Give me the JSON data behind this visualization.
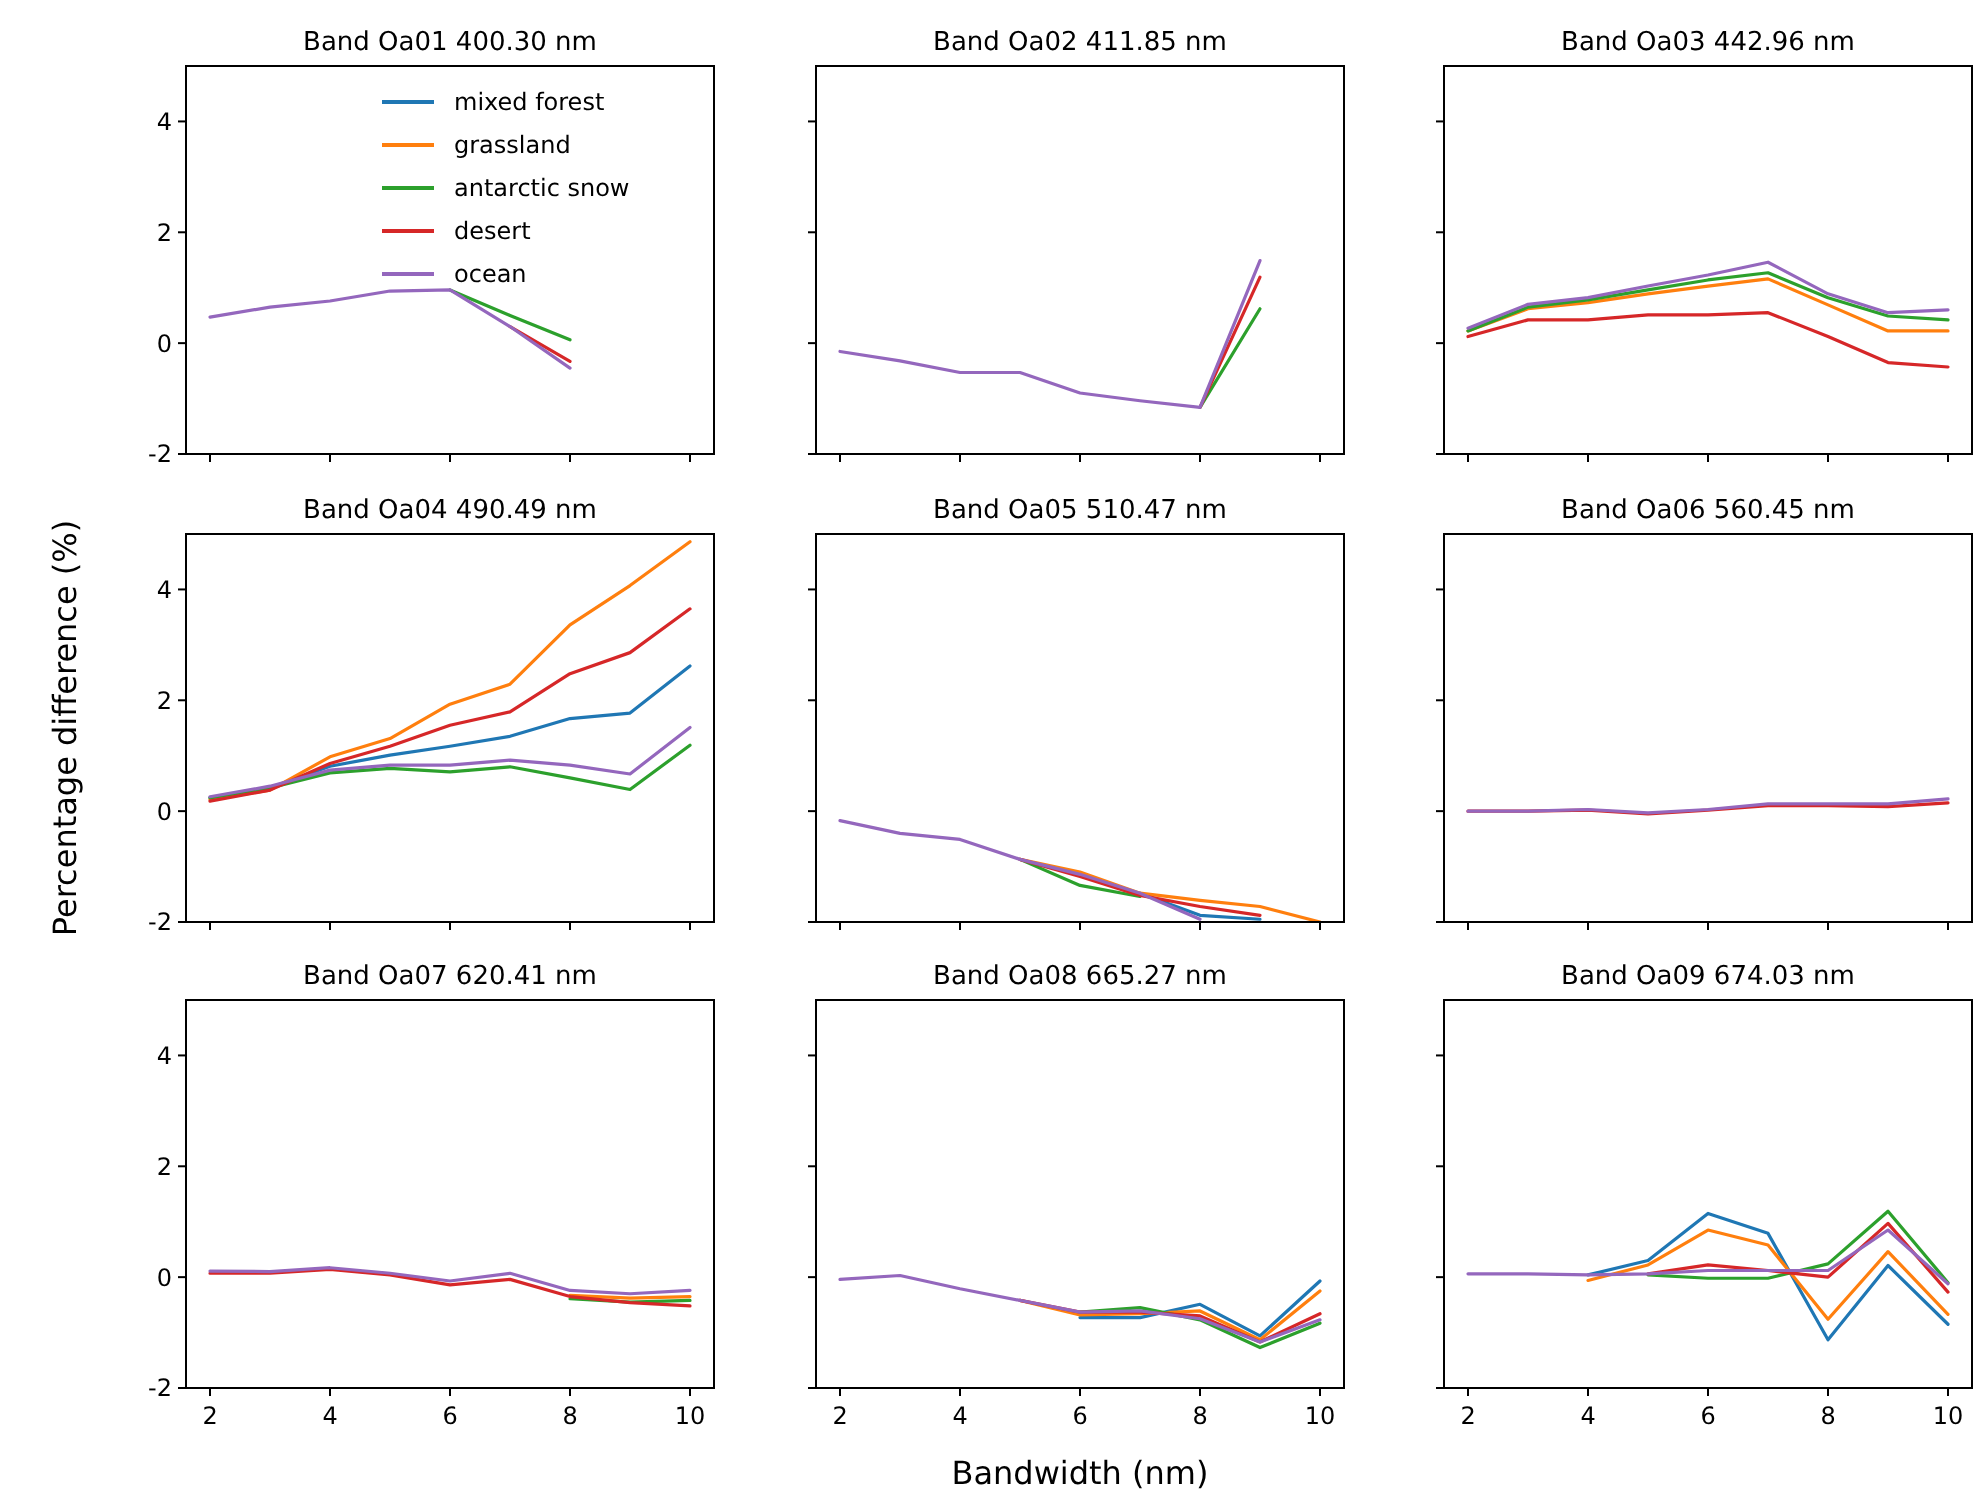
{
  "chart_data": [
    {
      "type": "line",
      "title": "Band Oa01 400.30 nm",
      "x": [
        2,
        3,
        4,
        5,
        6,
        7,
        8
      ],
      "xlim": [
        1.6,
        10.4
      ],
      "xticks": [
        2,
        4,
        6,
        8,
        10
      ],
      "ylim": [
        -2,
        5
      ],
      "yticks": [
        -2,
        0,
        2,
        4
      ],
      "tick_labels": "y",
      "legend": "top right",
      "series": [
        {
          "name": "mixed forest",
          "color": "#1f77b4",
          "values": [
            null,
            null,
            null,
            null,
            null,
            null,
            null
          ]
        },
        {
          "name": "grassland",
          "color": "#ff7f0e",
          "values": [
            null,
            null,
            null,
            null,
            null,
            null,
            null
          ]
        },
        {
          "name": "antarctic snow",
          "color": "#2ca02c",
          "values": [
            null,
            null,
            null,
            null,
            0.96,
            0.5,
            0.06
          ]
        },
        {
          "name": "desert",
          "color": "#d62728",
          "values": [
            null,
            null,
            null,
            null,
            null,
            0.3,
            -0.33
          ]
        },
        {
          "name": "ocean",
          "color": "#9467bd",
          "values": [
            0.47,
            0.65,
            0.76,
            0.94,
            0.96,
            0.3,
            -0.45
          ]
        }
      ]
    },
    {
      "type": "line",
      "title": "Band Oa02 411.85 nm",
      "x": [
        2,
        3,
        4,
        5,
        6,
        7,
        8,
        9
      ],
      "xlim": [
        1.6,
        10.4
      ],
      "xticks": [
        2,
        4,
        6,
        8,
        10
      ],
      "ylim": [
        -2,
        5
      ],
      "yticks": [
        -2,
        0,
        2,
        4
      ],
      "tick_labels": false,
      "series": [
        {
          "color": "#1f77b4",
          "values": [
            null,
            null,
            null,
            null,
            null,
            null,
            null,
            null
          ]
        },
        {
          "color": "#ff7f0e",
          "values": [
            null,
            null,
            null,
            null,
            null,
            null,
            null,
            null
          ]
        },
        {
          "color": "#2ca02c",
          "values": [
            null,
            null,
            null,
            null,
            null,
            null,
            -1.16,
            0.62
          ]
        },
        {
          "color": "#d62728",
          "values": [
            null,
            null,
            null,
            null,
            null,
            null,
            -1.16,
            1.19
          ]
        },
        {
          "color": "#9467bd",
          "values": [
            -0.15,
            -0.32,
            -0.53,
            -0.53,
            -0.9,
            -1.04,
            -1.16,
            1.49
          ]
        }
      ]
    },
    {
      "type": "line",
      "title": "Band Oa03 442.96 nm",
      "x": [
        2,
        3,
        4,
        5,
        6,
        7,
        8,
        9,
        10
      ],
      "xlim": [
        1.6,
        10.4
      ],
      "xticks": [
        2,
        4,
        6,
        8,
        10
      ],
      "ylim": [
        -2,
        5
      ],
      "yticks": [
        -2,
        0,
        2,
        4
      ],
      "tick_labels": false,
      "series": [
        {
          "color": "#1f77b4",
          "values": [
            null,
            null,
            null,
            null,
            null,
            null,
            null,
            null,
            null
          ]
        },
        {
          "color": "#ff7f0e",
          "values": [
            0.22,
            0.62,
            0.73,
            0.89,
            1.03,
            1.16,
            0.69,
            0.22,
            0.22
          ]
        },
        {
          "color": "#2ca02c",
          "values": [
            0.22,
            0.65,
            0.78,
            0.96,
            1.14,
            1.27,
            0.82,
            0.49,
            0.42
          ]
        },
        {
          "color": "#d62728",
          "values": [
            0.12,
            0.42,
            0.42,
            0.51,
            0.51,
            0.55,
            0.12,
            -0.35,
            -0.43
          ]
        },
        {
          "color": "#9467bd",
          "values": [
            0.27,
            0.7,
            0.82,
            1.03,
            1.23,
            1.46,
            0.89,
            0.55,
            0.6
          ]
        }
      ]
    },
    {
      "type": "line",
      "title": "Band Oa04 490.49 nm",
      "ylabel": "Percentage difference (%)",
      "x": [
        2,
        3,
        4,
        5,
        6,
        7,
        8,
        9,
        10
      ],
      "xlim": [
        1.6,
        10.4
      ],
      "xticks": [
        2,
        4,
        6,
        8,
        10
      ],
      "ylim": [
        -2,
        5
      ],
      "yticks": [
        -2,
        0,
        2,
        4
      ],
      "tick_labels": "y",
      "series": [
        {
          "color": "#1f77b4",
          "values": [
            0.24,
            0.42,
            0.81,
            1.01,
            1.17,
            1.35,
            1.67,
            1.77,
            2.62
          ]
        },
        {
          "color": "#ff7f0e",
          "values": [
            0.21,
            0.38,
            0.98,
            1.31,
            1.93,
            2.29,
            3.36,
            4.07,
            4.86
          ]
        },
        {
          "color": "#2ca02c",
          "values": [
            0.24,
            0.42,
            0.69,
            0.77,
            0.71,
            0.8,
            0.6,
            0.39,
            1.19
          ]
        },
        {
          "color": "#d62728",
          "values": [
            0.18,
            0.38,
            0.86,
            1.17,
            1.55,
            1.79,
            2.48,
            2.86,
            3.65
          ]
        },
        {
          "color": "#9467bd",
          "values": [
            0.26,
            0.45,
            0.74,
            0.83,
            0.83,
            0.92,
            0.83,
            0.67,
            1.51
          ]
        }
      ]
    },
    {
      "type": "line",
      "title": "Band Oa05 510.47 nm",
      "x": [
        2,
        3,
        4,
        5,
        6,
        7,
        8,
        9,
        10
      ],
      "xlim": [
        1.6,
        10.4
      ],
      "xticks": [
        2,
        4,
        6,
        8,
        10
      ],
      "ylim": [
        -2,
        5
      ],
      "yticks": [
        -2,
        0,
        2,
        4
      ],
      "tick_labels": false,
      "series": [
        {
          "color": "#1f77b4",
          "values": [
            null,
            null,
            null,
            null,
            null,
            -1.48,
            -1.88,
            -1.95,
            null
          ]
        },
        {
          "color": "#ff7f0e",
          "values": [
            null,
            null,
            null,
            -0.87,
            -1.1,
            -1.48,
            -1.61,
            -1.72,
            -2
          ]
        },
        {
          "color": "#2ca02c",
          "values": [
            null,
            null,
            null,
            -0.87,
            -1.34,
            -1.54,
            null,
            null,
            null
          ]
        },
        {
          "color": "#d62728",
          "values": [
            null,
            null,
            null,
            -0.87,
            -1.18,
            -1.52,
            -1.72,
            -1.88,
            null
          ]
        },
        {
          "color": "#9467bd",
          "values": [
            -0.17,
            -0.4,
            -0.51,
            -0.87,
            -1.14,
            -1.48,
            -1.95,
            null,
            null
          ]
        }
      ]
    },
    {
      "type": "line",
      "title": "Band Oa06 560.45 nm",
      "x": [
        2,
        3,
        4,
        5,
        6,
        7,
        8,
        9,
        10
      ],
      "xlim": [
        1.6,
        10.4
      ],
      "xticks": [
        2,
        4,
        6,
        8,
        10
      ],
      "ylim": [
        -2,
        5
      ],
      "yticks": [
        -2,
        0,
        2,
        4
      ],
      "tick_labels": false,
      "series": [
        {
          "color": "#1f77b4",
          "values": [
            null,
            null,
            null,
            null,
            null,
            null,
            null,
            null,
            null
          ]
        },
        {
          "color": "#ff7f0e",
          "values": [
            null,
            null,
            null,
            null,
            null,
            null,
            null,
            null,
            null
          ]
        },
        {
          "color": "#2ca02c",
          "values": [
            null,
            null,
            null,
            null,
            null,
            null,
            null,
            null,
            null
          ]
        },
        {
          "color": "#d62728",
          "values": [
            0,
            0,
            0.02,
            -0.05,
            0.02,
            0.1,
            0.1,
            0.08,
            0.15
          ]
        },
        {
          "color": "#9467bd",
          "values": [
            0,
            0,
            0.03,
            -0.03,
            0.03,
            0.13,
            0.13,
            0.13,
            0.22
          ]
        }
      ]
    },
    {
      "type": "line",
      "title": "Band Oa07 620.41 nm",
      "x": [
        2,
        3,
        4,
        5,
        6,
        7,
        8,
        9,
        10
      ],
      "xlim": [
        1.6,
        10.4
      ],
      "xticks": [
        2,
        4,
        6,
        8,
        10
      ],
      "ylim": [
        -2,
        5
      ],
      "yticks": [
        -2,
        0,
        2,
        4
      ],
      "series": [
        {
          "color": "#1f77b4",
          "values": [
            null,
            null,
            null,
            null,
            null,
            null,
            null,
            null,
            null
          ]
        },
        {
          "color": "#ff7f0e",
          "values": [
            null,
            null,
            null,
            null,
            null,
            null,
            -0.33,
            -0.38,
            -0.35
          ]
        },
        {
          "color": "#2ca02c",
          "values": [
            null,
            null,
            null,
            null,
            null,
            null,
            -0.39,
            -0.45,
            -0.42
          ]
        },
        {
          "color": "#d62728",
          "values": [
            0.07,
            0.07,
            0.14,
            0.04,
            -0.14,
            -0.04,
            -0.35,
            -0.46,
            -0.52
          ]
        },
        {
          "color": "#9467bd",
          "values": [
            0.11,
            0.1,
            0.17,
            0.07,
            -0.07,
            0.07,
            -0.24,
            -0.3,
            -0.24
          ]
        }
      ]
    },
    {
      "type": "line",
      "title": "Band Oa08 665.27 nm",
      "xlabel": "Bandwidth (nm)",
      "x": [
        2,
        3,
        4,
        5,
        6,
        7,
        8,
        9,
        10
      ],
      "xlim": [
        1.6,
        10.4
      ],
      "xticks": [
        2,
        4,
        6,
        8,
        10
      ],
      "ylim": [
        -2,
        5
      ],
      "yticks": [
        -2,
        0,
        2,
        4
      ],
      "tick_labels": "x",
      "series": [
        {
          "color": "#1f77b4",
          "values": [
            null,
            null,
            null,
            null,
            -0.73,
            -0.73,
            -0.49,
            -1.06,
            -0.07
          ]
        },
        {
          "color": "#ff7f0e",
          "values": [
            null,
            null,
            null,
            -0.42,
            -0.68,
            -0.66,
            -0.61,
            -1.13,
            -0.25
          ]
        },
        {
          "color": "#2ca02c",
          "values": [
            null,
            null,
            null,
            null,
            -0.63,
            -0.55,
            -0.77,
            -1.27,
            -0.83
          ]
        },
        {
          "color": "#d62728",
          "values": [
            null,
            null,
            null,
            -0.42,
            -0.63,
            -0.63,
            -0.7,
            -1.17,
            -0.66
          ]
        },
        {
          "color": "#9467bd",
          "values": [
            -0.04,
            0.03,
            -0.21,
            -0.42,
            -0.63,
            -0.61,
            -0.75,
            -1.17,
            -0.77
          ]
        }
      ]
    },
    {
      "type": "line",
      "title": "Band Oa09 674.03 nm",
      "x": [
        2,
        3,
        4,
        5,
        6,
        7,
        8,
        9,
        10
      ],
      "xlim": [
        1.6,
        10.4
      ],
      "xticks": [
        2,
        4,
        6,
        8,
        10
      ],
      "ylim": [
        -2,
        5
      ],
      "yticks": [
        -2,
        0,
        2,
        4
      ],
      "tick_labels": "x",
      "series": [
        {
          "color": "#1f77b4",
          "values": [
            null,
            null,
            0.04,
            0.3,
            1.15,
            0.79,
            -1.13,
            0.21,
            -0.85
          ]
        },
        {
          "color": "#ff7f0e",
          "values": [
            null,
            null,
            -0.06,
            0.22,
            0.85,
            0.58,
            -0.76,
            0.46,
            -0.67
          ]
        },
        {
          "color": "#2ca02c",
          "values": [
            null,
            null,
            null,
            0.04,
            -0.02,
            -0.02,
            0.24,
            1.19,
            -0.1
          ]
        },
        {
          "color": "#d62728",
          "values": [
            null,
            null,
            null,
            0.06,
            0.22,
            0.12,
            0,
            0.97,
            -0.27
          ]
        },
        {
          "color": "#9467bd",
          "values": [
            0.06,
            0.06,
            0.04,
            0.06,
            0.12,
            0.12,
            0.12,
            0.85,
            -0.12
          ]
        }
      ]
    }
  ]
}
